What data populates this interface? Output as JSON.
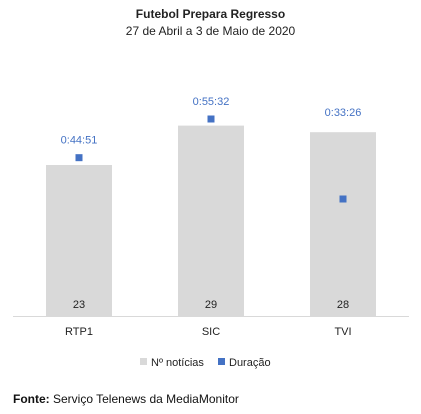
{
  "chart_data": {
    "type": "bar",
    "title": "Futebol Prepara Regresso",
    "subtitle": "27 de Abril a 3 de Maio de 2020",
    "categories": [
      "RTP1",
      "SIC",
      "TVI"
    ],
    "series": [
      {
        "name": "Nº notícias",
        "type": "bar",
        "values": [
          23,
          29,
          28
        ],
        "color": "#d9d9d9"
      },
      {
        "name": "Duração",
        "type": "scatter",
        "values": [
          "0:44:51",
          "0:55:32",
          "0:33:26"
        ],
        "values_seconds": [
          2691,
          3332,
          2006
        ],
        "color": "#4472c4"
      }
    ],
    "legend_position": "bottom",
    "grid": false
  },
  "source": {
    "label": "Fonte:",
    "text": "Serviço Telenews da MediaMonitor"
  }
}
